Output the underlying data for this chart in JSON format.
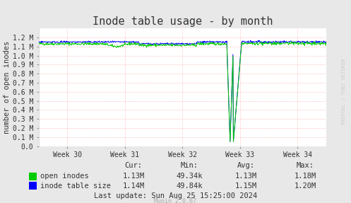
{
  "title": "Inode table usage - by month",
  "ylabel": "number of open inodes",
  "background_color": "#e8e8e8",
  "plot_bg_color": "#ffffff",
  "grid_color": "#ff9999",
  "weeks": [
    "Week 30",
    "Week 31",
    "Week 32",
    "Week 33",
    "Week 34"
  ],
  "ylim": [
    0,
    1300000.0
  ],
  "yticks": [
    0,
    100000.0,
    200000.0,
    300000.0,
    400000.0,
    500000.0,
    600000.0,
    700000.0,
    800000.0,
    900000.0,
    1000000.0,
    1100000.0,
    1200000.0
  ],
  "ytick_labels": [
    "0.0",
    "0.1 M",
    "0.2 M",
    "0.3 M",
    "0.4 M",
    "0.5 M",
    "0.6 M",
    "0.7 M",
    "0.8 M",
    "0.9 M",
    "1.0 M",
    "1.1 M",
    "1.2 M"
  ],
  "green_color": "#00cc00",
  "blue_color": "#0000ff",
  "legend_items": [
    "open inodes",
    "inode table size"
  ],
  "cur_open": "1.13M",
  "min_open": "49.34k",
  "avg_open": "1.13M",
  "max_open": "1.18M",
  "cur_table": "1.14M",
  "min_table": "49.84k",
  "avg_table": "1.15M",
  "max_table": "1.20M",
  "last_update": "Last update: Sun Aug 25 15:25:00 2024",
  "munin_version": "Munin 2.0.67",
  "rrdtool_label": "RRDTOOL / TOBI OETIKER",
  "title_fontsize": 11,
  "label_fontsize": 7.5,
  "tick_fontsize": 7,
  "legend_fontsize": 7.5
}
